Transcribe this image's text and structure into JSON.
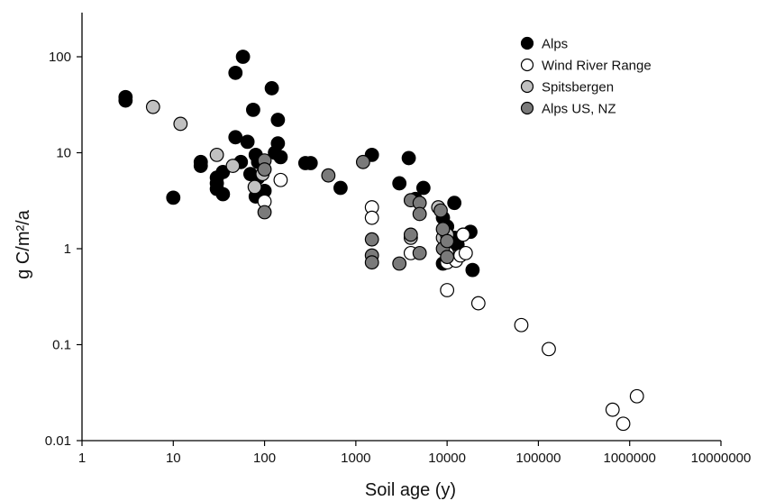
{
  "chart_data": {
    "type": "scatter",
    "xlabel": "Soil age (y)",
    "ylabel": "g C/m²/a",
    "xscale": "log",
    "yscale": "log",
    "xlim": [
      1,
      10000000
    ],
    "ylim": [
      0.01,
      300
    ],
    "x_ticks": [
      1,
      10,
      100,
      1000,
      10000,
      100000,
      1000000,
      10000000
    ],
    "x_tick_labels": [
      "1",
      "10",
      "100",
      "1000",
      "10000",
      "100000",
      "1000000",
      "10000000"
    ],
    "y_ticks": [
      0.01,
      0.1,
      1,
      10,
      100
    ],
    "y_tick_labels": [
      "0.01",
      "0.1",
      "1",
      "10",
      "100"
    ],
    "grid": false,
    "legend_position": "top-right",
    "series": [
      {
        "name": "Alps",
        "color": "#000000",
        "points": [
          [
            3,
            38
          ],
          [
            3,
            35
          ],
          [
            10,
            3.4
          ],
          [
            20,
            8
          ],
          [
            20,
            7.3
          ],
          [
            30,
            5.5
          ],
          [
            30,
            4.8
          ],
          [
            30,
            4.2
          ],
          [
            35,
            6.3
          ],
          [
            35,
            3.7
          ],
          [
            48,
            68
          ],
          [
            48,
            14.5
          ],
          [
            55,
            8
          ],
          [
            58,
            100
          ],
          [
            65,
            13
          ],
          [
            70,
            6
          ],
          [
            75,
            28
          ],
          [
            80,
            9.5
          ],
          [
            85,
            8
          ],
          [
            85,
            5.5
          ],
          [
            80,
            3.5
          ],
          [
            120,
            47
          ],
          [
            130,
            10
          ],
          [
            140,
            22
          ],
          [
            140,
            12.5
          ],
          [
            150,
            9
          ],
          [
            100,
            4
          ],
          [
            280,
            7.8
          ],
          [
            320,
            7.8
          ],
          [
            680,
            4.3
          ],
          [
            1500,
            9.5
          ],
          [
            3000,
            4.8
          ],
          [
            3800,
            8.8
          ],
          [
            4500,
            3.3
          ],
          [
            5500,
            4.3
          ],
          [
            9000,
            2.1
          ],
          [
            10000,
            1.7
          ],
          [
            12000,
            3
          ],
          [
            12000,
            1.3
          ],
          [
            13000,
            1.1
          ],
          [
            15000,
            1.4
          ],
          [
            18000,
            1.5
          ],
          [
            19000,
            0.6
          ],
          [
            9000,
            0.7
          ]
        ]
      },
      {
        "name": "Wind River Range",
        "color": "#ffffff",
        "points": [
          [
            100,
            3.1
          ],
          [
            150,
            5.2
          ],
          [
            1500,
            2.7
          ],
          [
            1500,
            2.1
          ],
          [
            4000,
            0.9
          ],
          [
            10000,
            0.9
          ],
          [
            10000,
            0.72
          ],
          [
            12500,
            0.75
          ],
          [
            14000,
            0.85
          ],
          [
            15000,
            1.4
          ],
          [
            16000,
            0.9
          ],
          [
            10000,
            0.37
          ],
          [
            22000,
            0.27
          ],
          [
            65000,
            0.16
          ],
          [
            130000,
            0.09
          ],
          [
            650000,
            0.021
          ],
          [
            850000,
            0.015
          ],
          [
            1200000,
            0.029
          ]
        ]
      },
      {
        "name": "Spitsbergen",
        "color": "#c0c0c0",
        "points": [
          [
            6,
            30
          ],
          [
            12,
            20
          ],
          [
            30,
            9.5
          ],
          [
            45,
            7.3
          ],
          [
            78,
            4.4
          ],
          [
            95,
            6
          ],
          [
            4000,
            1.3
          ],
          [
            8000,
            2.7
          ],
          [
            9000,
            1.3
          ],
          [
            10000,
            1.4
          ]
        ]
      },
      {
        "name": "Alps US, NZ",
        "color": "#7a7a7a",
        "points": [
          [
            100,
            8.3
          ],
          [
            100,
            6.7
          ],
          [
            100,
            2.4
          ],
          [
            500,
            5.8
          ],
          [
            1200,
            8
          ],
          [
            1500,
            1.25
          ],
          [
            1500,
            0.85
          ],
          [
            1500,
            0.72
          ],
          [
            3000,
            0.7
          ],
          [
            4000,
            3.2
          ],
          [
            4000,
            1.4
          ],
          [
            5000,
            3
          ],
          [
            5000,
            2.3
          ],
          [
            5000,
            0.9
          ],
          [
            8500,
            2.5
          ],
          [
            9000,
            1.6
          ],
          [
            9000,
            1
          ],
          [
            10000,
            1.2
          ],
          [
            10000,
            0.82
          ]
        ]
      }
    ]
  }
}
